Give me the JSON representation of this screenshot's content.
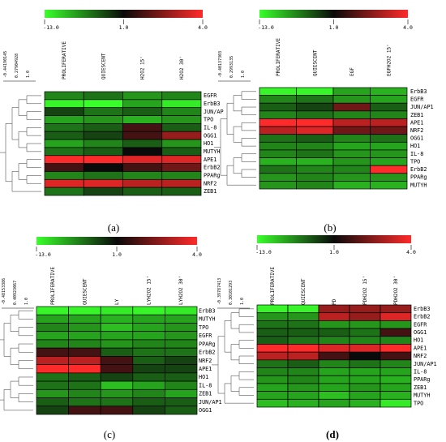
{
  "colors": {
    "low": "#39ff2a",
    "mid": "#0a0a0a",
    "high": "#ff2a2a",
    "grid": "#000000",
    "dendro": "#555555",
    "panel_bg": "#ffffff"
  },
  "chart_data": [
    {
      "type": "heatmap",
      "panel_label": "(a)",
      "color_scale": {
        "min": -13.0,
        "mid": 1.0,
        "max": 4.0,
        "labels": [
          "-13.0",
          "1.0",
          "4.0"
        ]
      },
      "dendro_scale_labels": [
        "-0.44190145",
        "0.27904928",
        "1.0"
      ],
      "columns": [
        "PROLIFERATIVE",
        "QUIESCENT",
        "H2O2 15'",
        "H2O2 30'"
      ],
      "rows": [
        "EGFR",
        "ErbB3",
        "JUN/AP",
        "TPO",
        "IL-8",
        "OGG1",
        "HO1",
        "MUTYH",
        "APE1",
        "ErbB2",
        "PPARg",
        "NRF2",
        "ZEB1"
      ],
      "values": [
        [
          -3,
          -2,
          -4,
          -3
        ],
        [
          -12,
          -13,
          -5,
          -11
        ],
        [
          0,
          -2,
          -1,
          -3
        ],
        [
          -5,
          -4,
          -6,
          -4
        ],
        [
          -2,
          -1,
          1.5,
          -1
        ],
        [
          -1,
          0,
          1.5,
          2.5
        ],
        [
          -5,
          -3,
          -1,
          -4
        ],
        [
          -2,
          -1,
          1.0,
          -1
        ],
        [
          4,
          4,
          3.5,
          3.5
        ],
        [
          1.5,
          1.0,
          1.5,
          2.0
        ],
        [
          -3,
          -2,
          -3,
          -3
        ],
        [
          3.5,
          3.5,
          3,
          3
        ],
        [
          -2,
          0,
          -1,
          -1
        ]
      ]
    },
    {
      "type": "heatmap",
      "panel_label": "(b)",
      "color_scale": {
        "min": -13.0,
        "mid": 1.0,
        "max": 4.0,
        "labels": [
          "-13.0",
          "1.0",
          "4.0"
        ]
      },
      "dendro_scale_labels": [
        "-0.40137303",
        "0.2993135",
        "1.0"
      ],
      "columns": [
        "PROLIFERATIVE",
        "QUIESCENT",
        "EGF",
        "EGFH2O2 15'"
      ],
      "rows": [
        "ErbB3",
        "EGFR",
        "JUN/AP1",
        "ZEB1",
        "APE1",
        "NRF2",
        "OGG1",
        "HO1",
        "IL-8",
        "TPO",
        "ErbB2",
        "PPARg",
        "MUTYH"
      ],
      "values": [
        [
          -12,
          -12,
          -5,
          -6
        ],
        [
          -3,
          -2,
          -4,
          -5
        ],
        [
          -1,
          0,
          2.0,
          -1
        ],
        [
          -3,
          -2,
          -3,
          -3
        ],
        [
          4,
          4,
          3,
          3
        ],
        [
          3,
          3.5,
          2.0,
          2.0
        ],
        [
          -2,
          -1,
          -3,
          -2
        ],
        [
          -3,
          -3,
          -5,
          -5
        ],
        [
          -3,
          -2,
          -4,
          -4
        ],
        [
          -6,
          -6,
          -4,
          -5
        ],
        [
          -2,
          -3,
          -3,
          4
        ],
        [
          -4,
          -3,
          -4,
          -4
        ],
        [
          -4,
          -3,
          -6,
          -6
        ]
      ]
    },
    {
      "type": "heatmap",
      "panel_label": "(c)",
      "color_scale": {
        "min": -13.0,
        "mid": 1.0,
        "max": 4.0,
        "labels": [
          "-13.0",
          "1.0",
          "4.0"
        ]
      },
      "dendro_scale_labels": [
        "-0.48153386",
        "0.40923067",
        "1.0"
      ],
      "columns": [
        "PROLIFERATIVE",
        "QUIESCENT",
        "LY",
        "LYH2O2 15'",
        "LYH2O2 30'"
      ],
      "rows": [
        "ErbB3",
        "MUTYH",
        "TPO",
        "EGFR",
        "PPARg",
        "ErbB2",
        "NRF2",
        "APE1",
        "HO1",
        "IL-8",
        "ZEB1",
        "JUN/AP1",
        "OGG1"
      ],
      "values": [
        [
          -12,
          -12,
          -11,
          -12,
          -11
        ],
        [
          -5,
          -5,
          -6,
          -5,
          -5
        ],
        [
          -3,
          -4,
          -7,
          -5,
          -4
        ],
        [
          -5,
          -5,
          -5,
          -5,
          -4
        ],
        [
          -3,
          -3,
          -4,
          -3,
          -3
        ],
        [
          1.5,
          1.5,
          -1,
          -2,
          -2
        ],
        [
          3,
          3,
          1.5,
          -1,
          0
        ],
        [
          4,
          4,
          1.5,
          0,
          0
        ],
        [
          -2,
          -1,
          0,
          -1,
          -1
        ],
        [
          -2,
          -2,
          -7,
          -5,
          -3
        ],
        [
          -4,
          -3,
          -4,
          -3,
          -5
        ],
        [
          -1,
          -2,
          -2,
          -1,
          -1
        ],
        [
          0,
          1.5,
          1.5,
          0,
          -1
        ]
      ]
    },
    {
      "type": "heatmap",
      "panel_label": "(d)",
      "color_scale": {
        "min": -13.0,
        "mid": 1.0,
        "max": 4.0,
        "labels": [
          "-13.0",
          "1.0",
          "4.0"
        ]
      },
      "dendro_scale_labels": [
        "-0.39787413",
        "0.30101293",
        "1.0"
      ],
      "columns": [
        "PROLIFERATIVE",
        "QUIESCENT",
        "PD",
        "PDH2O2 15'",
        "PDH2O2 30'"
      ],
      "rows": [
        "ErbB3",
        "ErbB2",
        "EGFR",
        "OGG1",
        "HO1",
        "APE1",
        "NRF2",
        "JUN/AP1",
        "IL-8",
        "PPARg",
        "ZEB1",
        "MUTYH",
        "TPO"
      ],
      "values": [
        [
          -12,
          -12,
          2.5,
          2.5,
          2.5
        ],
        [
          -4,
          -4,
          3,
          2.5,
          3.5
        ],
        [
          -2,
          -2,
          -4,
          -4,
          -4
        ],
        [
          -1,
          -1,
          -1,
          -2,
          1.5
        ],
        [
          -1,
          -2,
          -3,
          -3,
          -3
        ],
        [
          4,
          4,
          3.5,
          3.5,
          4
        ],
        [
          3,
          3,
          1.5,
          1.0,
          1.5
        ],
        [
          -2,
          -1,
          -3,
          -2,
          -3
        ],
        [
          -3,
          -3,
          -5,
          -5,
          -5
        ],
        [
          -4,
          -3,
          -5,
          -5,
          -6
        ],
        [
          -5,
          -4,
          -5,
          -4,
          -5
        ],
        [
          -5,
          -5,
          -7,
          -5,
          -6
        ],
        [
          -7,
          -6,
          -5,
          -6,
          -11
        ]
      ]
    }
  ]
}
